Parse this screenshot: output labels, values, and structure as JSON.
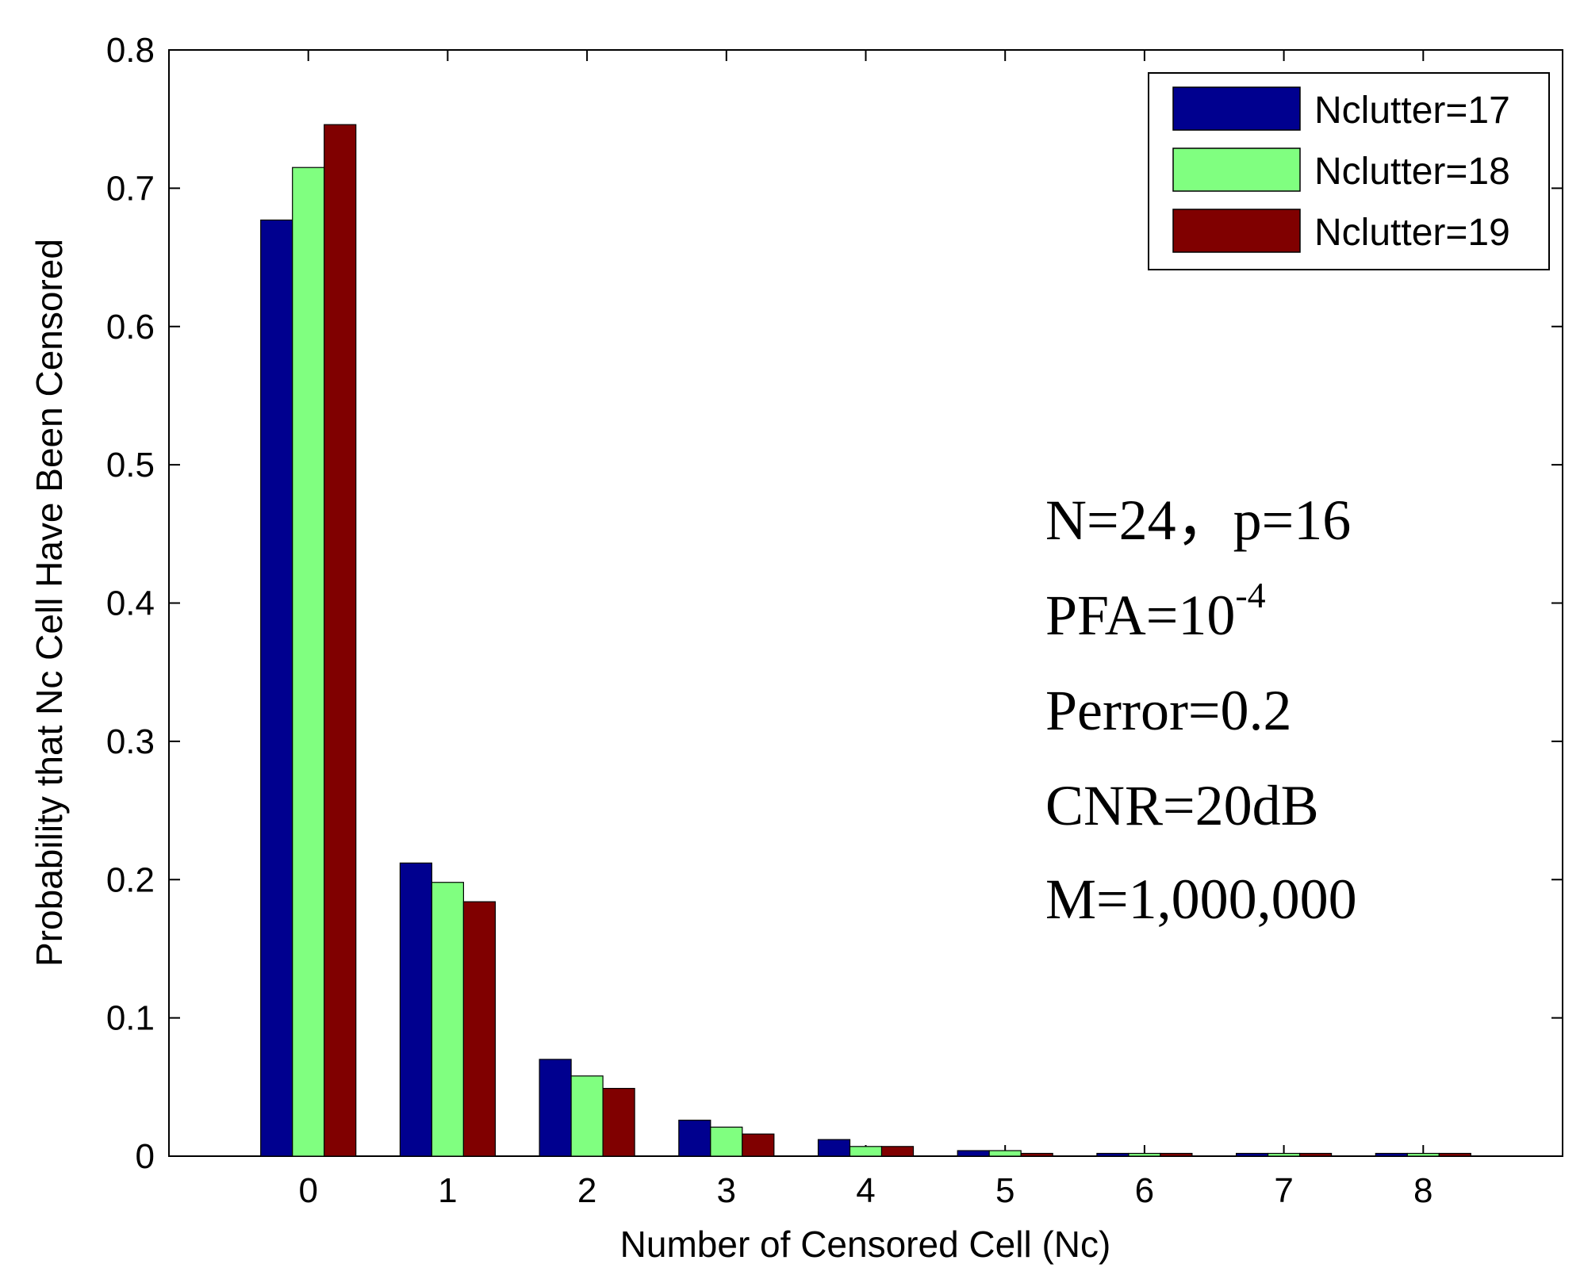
{
  "chart_data": {
    "type": "bar",
    "categories": [
      "0",
      "1",
      "2",
      "3",
      "4",
      "5",
      "6",
      "7",
      "8"
    ],
    "series": [
      {
        "name": "Nclutter=17",
        "color": "#00008f",
        "values": [
          0.677,
          0.212,
          0.07,
          0.026,
          0.012,
          0.004,
          0.002,
          0.002,
          0.002
        ]
      },
      {
        "name": "Nclutter=18",
        "color": "#80ff80",
        "values": [
          0.715,
          0.198,
          0.058,
          0.021,
          0.007,
          0.004,
          0.002,
          0.002,
          0.002
        ]
      },
      {
        "name": "Nclutter=19",
        "color": "#800000",
        "values": [
          0.746,
          0.184,
          0.049,
          0.016,
          0.007,
          0.002,
          0.002,
          0.002,
          0.002
        ]
      }
    ],
    "xlabel": "Number of Censored Cell (Nc)",
    "ylabel": "Probability that Nc Cell Have Been Censored",
    "ylim": [
      0,
      0.8
    ],
    "yticks": [
      "0",
      "0.1",
      "0.2",
      "0.3",
      "0.4",
      "0.5",
      "0.6",
      "0.7",
      "0.8"
    ],
    "grid": false,
    "legend_position": "top-right",
    "annotations": [
      {
        "text": "N=24，p=16"
      },
      {
        "text": "PFA=10",
        "superscript": "-4"
      },
      {
        "text": "Perror=0.2"
      },
      {
        "text": "CNR=20dB"
      },
      {
        "text": "M=1,000,000"
      }
    ]
  }
}
